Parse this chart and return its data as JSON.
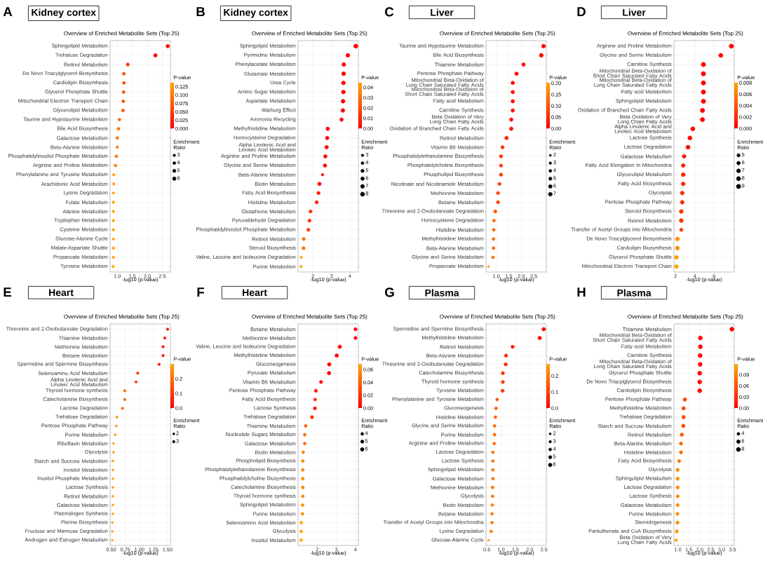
{
  "chart_data": [
    {
      "type": "bubble",
      "orientation": "horizontal",
      "marker": "circle",
      "grid": true,
      "annotations": [
        "A",
        "Kidney cortex"
      ],
      "title": "Overview of Enriched Metabolite Sets (Top 25)",
      "xlabel": "-log10 (p-value)",
      "legend_title": "Enrichment Ratio",
      "clabel": "P-value",
      "categories": [
        "Sphingolipid Metabolism",
        "Trehalose Degradation",
        "Retinol Metabolism",
        "De Novo Triacylglycerol Biosynthesis",
        "Cardiolipin Biosynthesis",
        "Glycerol Phosphate Shuttle",
        "Mitochondrial Electron Transport Chain",
        "Glycerolipid Metabolism",
        "Taurine and Hypotaurine Metabolism",
        "Bile Acid Biosynthesis",
        "Galactose Metabolism",
        "Beta-Alanine Metabolism",
        "Phosphatidylinositol Phosphate Metabolism",
        "Arginine and Proline Metabolism",
        "Phenylalanine and Tyrosine Metabolism",
        "Arachidonic Acid Metabolism",
        "Lysine Degradation",
        "Folate Metabolism",
        "Alanine Metabolism",
        "Tryptophan Metabolism",
        "Cysteine Metabolism",
        "Glucose-Alanine Cycle",
        "Malate-Aspartate Shuttle",
        "Propanoate Metabolism",
        "Tyrosine Metabolism"
      ],
      "values": [
        2.68,
        2.27,
        1.35,
        1.22,
        1.22,
        1.21,
        1.2,
        1.19,
        1.07,
        1.04,
        1.0,
        1.0,
        0.97,
        0.94,
        0.88,
        0.88,
        0.87,
        0.87,
        0.87,
        0.87,
        0.87,
        0.87,
        0.87,
        0.87,
        0.86
      ],
      "sizes": [
        6,
        6,
        5,
        4,
        4,
        4,
        4,
        4,
        4,
        4,
        4,
        3,
        4,
        4,
        3,
        3,
        3,
        3,
        3,
        3,
        3,
        3,
        3,
        3,
        3
      ],
      "cvalues": [
        0.0021,
        0.0054,
        0.045,
        0.06,
        0.06,
        0.062,
        0.063,
        0.065,
        0.085,
        0.091,
        0.1,
        0.1,
        0.107,
        0.115,
        0.132,
        0.132,
        0.135,
        0.135,
        0.135,
        0.135,
        0.135,
        0.135,
        0.135,
        0.135,
        0.138
      ],
      "size_legend": [
        3,
        4,
        5,
        6
      ],
      "clim": [
        0,
        0.138
      ],
      "cticks": [
        {
          "value": 0,
          "label": "0.000"
        },
        0.025,
        {
          "value": 0.05,
          "label": "0.050"
        },
        0.075,
        {
          "value": 0.1,
          "label": "0.100"
        },
        0.125
      ],
      "xlim": [
        0.76,
        2.77
      ],
      "xticks": [
        {
          "value": 1,
          "label": "1.0"
        },
        1.5,
        {
          "value": 2,
          "label": "2.0"
        },
        2.5
      ]
    },
    {
      "type": "bubble",
      "orientation": "horizontal",
      "marker": "circle",
      "grid": true,
      "annotations": [
        "B",
        "Kidney cortex"
      ],
      "title": "Overview of Enriched Metabolite Sets (Top 25)",
      "xlabel": "-log10 (p-value)",
      "legend_title": "Enrichment Ratio",
      "clabel": "P-value",
      "categories": [
        "Sphingolipid Metabolism",
        "Pyrimidine Metabolism",
        "Phenylacetate Metabolism",
        "Glutamate Metabolism",
        "Urea Cycle",
        "Amino Sugar Metabolism",
        "Aspartate Metabolism",
        "Warburg Effect",
        "Ammonia Recycling",
        "Methylhistidine Metabolism",
        "Homocysteine Degradation",
        "Alpha Linolenic Acid and Linoleic Acid Metabolism",
        "Arginine and Proline Metabolism",
        "Glycine and Serine Metabolism",
        "Beta-Alanine Metabolism",
        "Biotin Metabolism",
        "Fatty Acid Biosynthesis",
        "Histidine Metabolism",
        "Glutathione Metabolism",
        "Pyruvaldehyde Degradation",
        "Phosphatidylinositol Phosphate Metabolism",
        "Retinol Metabolism",
        "Steroid Biosynthesis",
        "Valine, Leucine and Isoleucine Degradation",
        "Purine Metabolism"
      ],
      "values": [
        4.32,
        3.89,
        3.67,
        3.66,
        3.65,
        3.65,
        3.63,
        3.62,
        3.55,
        2.8,
        2.77,
        2.74,
        2.67,
        2.65,
        2.52,
        2.35,
        2.3,
        2.2,
        1.87,
        1.81,
        1.75,
        1.5,
        1.49,
        1.36,
        1.35
      ],
      "sizes": [
        8,
        7,
        7,
        7,
        7,
        7,
        7,
        7,
        6,
        6,
        6,
        6,
        6,
        6,
        3,
        6,
        5,
        5,
        5,
        5,
        5,
        5,
        5,
        3,
        3
      ],
      "cvalues": [
        5e-05,
        0.00013,
        0.00021,
        0.00022,
        0.00022,
        0.00022,
        0.00023,
        0.00024,
        0.00028,
        0.0016,
        0.0017,
        0.0018,
        0.0021,
        0.0022,
        0.003,
        0.0045,
        0.005,
        0.0063,
        0.013,
        0.015,
        0.018,
        0.032,
        0.032,
        0.044,
        0.045
      ],
      "size_legend": [
        3,
        4,
        5,
        6,
        7,
        8
      ],
      "clim": [
        0,
        0.045
      ],
      "cticks": [
        {
          "value": 0,
          "label": "0.00"
        },
        0.01,
        0.02,
        0.03,
        0.04
      ],
      "xlim": [
        1.19,
        4.46
      ],
      "xticks": [
        2,
        3,
        4
      ]
    },
    {
      "type": "bubble",
      "orientation": "horizontal",
      "marker": "circle",
      "grid": true,
      "annotations": [
        "C",
        "Liver"
      ],
      "title": "Overview of Enriched Metabolite Sets (Top 25)",
      "xlabel": "-log10 (p-value)",
      "legend_title": "Enrichment Ratio",
      "clabel": "P-value",
      "categories": [
        "Taurine and Hypotaurine Metabolism",
        "Bile Acid Biosynthesis",
        "Thiamine Metabolism",
        "Pentose Phosphate Pathway",
        "Mitochondrial Beta-Oxidation of Long Chain Saturated Fatty Acids",
        "Mitochondrial Beta-Oxidation of Short Chain Saturated Fatty Acids",
        "Fatty acid Metabolism",
        "Carnitine Synthesis",
        "Beta Oxidation of Very Long Chain Fatty Acids",
        "Oxidation of Branched Chain Fatty Acids",
        "Retinol Metabolism",
        "Vitamin B6 Metabolism",
        "Phosphatidylethanolamine Biosynthesis",
        "Phosphatidylcholine Biosynthesis",
        "Phospholipid Biosynthesis",
        "Nicotinate and Nicotinamide Metabolism",
        "Methionine Metabolism",
        "Betaine Metabolism",
        "Threonine and 2-Oxobutanoate Degradation",
        "Homocysteine Degradation",
        "Histidine Metabolism",
        "Methylhistidine Metabolism",
        "Beta-Alanine Metabolism",
        "Glycine and Serine Metabolism",
        "Propanoate Metabolism"
      ],
      "values": [
        2.89,
        2.8,
        2.09,
        1.81,
        1.66,
        1.66,
        1.66,
        1.66,
        1.6,
        1.6,
        1.41,
        1.25,
        1.19,
        1.19,
        1.19,
        1.13,
        1.07,
        1.07,
        0.96,
        0.91,
        0.9,
        0.89,
        0.89,
        0.87,
        0.69
      ],
      "sizes": [
        7,
        7,
        6,
        6,
        6,
        6,
        6,
        6,
        6,
        6,
        6,
        5,
        5,
        5,
        5,
        5,
        5,
        5,
        5,
        4,
        4,
        4,
        4,
        4,
        2
      ],
      "cvalues": [
        0.0013,
        0.0016,
        0.0081,
        0.015,
        0.022,
        0.022,
        0.022,
        0.022,
        0.025,
        0.025,
        0.039,
        0.056,
        0.065,
        0.065,
        0.065,
        0.074,
        0.085,
        0.085,
        0.11,
        0.123,
        0.126,
        0.129,
        0.129,
        0.135,
        0.204
      ],
      "size_legend": [
        2,
        3,
        4,
        5,
        6,
        7
      ],
      "clim": [
        0,
        0.204
      ],
      "cticks": [
        {
          "value": 0,
          "label": "0.00"
        },
        0.05,
        {
          "value": 0.1,
          "label": "0.10"
        },
        0.15,
        {
          "value": 0.2,
          "label": "0.20"
        }
      ],
      "xlim": [
        0.59,
        3.0
      ],
      "xticks": [
        {
          "value": 1,
          "label": "1.0"
        },
        1.5,
        {
          "value": 2,
          "label": "2.0"
        },
        2.5
      ]
    },
    {
      "type": "bubble",
      "orientation": "horizontal",
      "marker": "circle",
      "grid": true,
      "annotations": [
        "D",
        "Liver"
      ],
      "title": "Overview of Enriched Metabolite Sets (Top 25)",
      "xlabel": "-log10 (p-value)",
      "legend_title": "Enrichment Ratio",
      "clabel": "P-value",
      "categories": [
        "Arginine and Proline Metabolism",
        "Glycine and Serine Metabolism",
        "Carnitine Synthesis",
        "Mitochondrial Beta-Oxidation of Short Chain Saturated Fatty Acids",
        "Mitochondrial Beta-Oxidation of Long Chain Saturated Fatty Acids",
        "Fatty acid Metabolism",
        "Sphingolipid Metabolism",
        "Oxidation of Branched Chain Fatty Acids",
        "Beta Oxidation of Very Long Chain Fatty Acids",
        "Alpha Linolenic Acid and Linoleic Acid Metabolism",
        "Lactose Synthesis",
        "Lactose Degradation",
        "Galactose Metabolism",
        "Fatty Acid Elongation In Mitochondria",
        "Glycerolipid Metabolism",
        "Fatty Acid Biosynthesis",
        "Glycolysis",
        "Pentose Phosphate Pathway",
        "Steroid Biosynthesis",
        "Retinol Metabolism",
        "Transfer of Acetyl Groups into Mitochondria",
        "De Novo Triacylglycerol Biosynthesis",
        "Cardiolipin Biosynthesis",
        "Glycerol Phosphate Shuttle",
        "Mitochondrial Electron Transport Chain"
      ],
      "values": [
        7.8,
        6.7,
        4.9,
        4.9,
        4.9,
        4.9,
        4.9,
        4.8,
        4.8,
        3.8,
        3.5,
        3.3,
        2.9,
        2.8,
        2.8,
        2.8,
        2.7,
        2.7,
        2.6,
        2.6,
        2.6,
        2.2,
        2.2,
        2.1,
        2.1
      ],
      "sizes": [
        9,
        8,
        9,
        9,
        9,
        9,
        9,
        9,
        9,
        8,
        8,
        8,
        7,
        7,
        7,
        7,
        7,
        7,
        7,
        7,
        5,
        7,
        7,
        7,
        7
      ],
      "cvalues": [
        2e-08,
        2e-07,
        1.3e-05,
        1.3e-05,
        1.3e-05,
        1.3e-05,
        1.4e-05,
        1.5e-05,
        1.5e-05,
        0.00017,
        0.0003,
        0.00052,
        0.0013,
        0.0015,
        0.0016,
        0.0018,
        0.0019,
        0.0019,
        0.0023,
        0.0024,
        0.0026,
        0.0069,
        0.0069,
        0.0078,
        0.0081
      ],
      "size_legend": [
        5,
        6,
        7,
        8,
        9
      ],
      "clim": [
        0,
        0.0081
      ],
      "cticks": [
        {
          "value": 0,
          "label": "0.000"
        },
        0.002,
        0.004,
        0.006,
        0.008
      ],
      "xlim": [
        1.84,
        8.1
      ],
      "xticks": [
        2,
        4,
        6
      ]
    },
    {
      "type": "bubble",
      "orientation": "horizontal",
      "marker": "circle",
      "grid": true,
      "annotations": [
        "E",
        "Heart"
      ],
      "title": "Overview of Enriched Metabolite Sets (Top 25)",
      "xlabel": "-log10 (p-value)",
      "legend_title": "Enrichment Ratio",
      "clabel": "P-value",
      "categories": [
        "Threonine and 2-Oxobutanoate Degradation",
        "Thiamine Metabolism",
        "Methionine Metabolism",
        "Betaine Metabolism",
        "Spermidine and Spermine Biosynthesis",
        "Selenoamino Acid Metabolism",
        "Alpha Linolenic Acid and Linoleic Acid Metabolism",
        "Thyroid hormone synthesis",
        "Catecholamine Biosynthesis",
        "Lactose Degradation",
        "Trehalose Degradation",
        "Pentose Phosphate Pathway",
        "Purine Metabolism",
        "Riboflavin Metabolism",
        "Glycolysis",
        "Starch and Sucrose Metabolism",
        "Inositol Metabolism",
        "Inositol Phosphate Metabolism",
        "Lactose Synthesis",
        "Retinol Metabolism",
        "Galactose Metabolism",
        "Plasmalogen Synthesis",
        "Pterine Biosynthesis",
        "Fructose and Mannose Degradation",
        "Androgen and Estrogen Metabolism"
      ],
      "values": [
        1.5,
        1.45,
        1.42,
        1.42,
        1.35,
        0.97,
        0.94,
        0.74,
        0.74,
        0.7,
        0.6,
        0.59,
        0.57,
        0.54,
        0.54,
        0.53,
        0.53,
        0.53,
        0.53,
        0.53,
        0.53,
        0.53,
        0.52,
        0.52,
        0.52
      ],
      "sizes": [
        3,
        3,
        3,
        3,
        3,
        3,
        3,
        3,
        3,
        3,
        2,
        2,
        2,
        2,
        2,
        2,
        2,
        2,
        2,
        2,
        2,
        2,
        2,
        2,
        2
      ],
      "cvalues": [
        0.032,
        0.035,
        0.038,
        0.038,
        0.045,
        0.107,
        0.115,
        0.182,
        0.182,
        0.2,
        0.251,
        0.257,
        0.269,
        0.288,
        0.288,
        0.295,
        0.295,
        0.295,
        0.295,
        0.295,
        0.295,
        0.295,
        0.302,
        0.302,
        0.302
      ],
      "size_legend": [
        2,
        3
      ],
      "clim": [
        0,
        0.302
      ],
      "cticks": [
        {
          "value": 0,
          "label": "0.0"
        },
        0.1,
        0.2
      ],
      "xlim": [
        0.48,
        1.55
      ],
      "xticks": [
        {
          "value": 0.5,
          "label": "0.50"
        },
        0.75,
        {
          "value": 1,
          "label": "1.00"
        },
        1.25,
        {
          "value": 1.5,
          "label": "1.50"
        }
      ]
    },
    {
      "type": "bubble",
      "orientation": "horizontal",
      "marker": "circle",
      "grid": true,
      "annotations": [
        "F",
        "Heart"
      ],
      "title": "Overview of Enriched Metabolite Sets (Top 25)",
      "xlabel": "-log10 (p-value)",
      "legend_title": "Enrichment Ratio",
      "clabel": "P-value",
      "categories": [
        "Betaine Metabolism",
        "Methionine Metabolism",
        "Valine, Leucine and Isoleucine Degradation",
        "Methylhistidine Metabolism",
        "Gluconeogenesis",
        "Pyruvate Metabolism",
        "Vitamin B6 Metabolism",
        "Pentose Phosphate Pathway",
        "Fatty Acid Biosynthesis",
        "Lactose Synthesis",
        "Trehalose Degradation",
        "Thiamine Metabolism",
        "Nucleotide Sugars Metabolism",
        "Galactose Metabolism",
        "Biotin Metabolism",
        "Phospholipid Biosynthesis",
        "Phosphatidylethanolamine Biosynthesis",
        "Phosphatidylcholine Biosynthesis",
        "Catecholamine Biosynthesis",
        "Thyroid hormone synthesis",
        "Sphingolipid Metabolism",
        "Purine Metabolism",
        "Selenoamino Acid Metabolism",
        "Glycolysis",
        "Inositol Metabolism"
      ],
      "values": [
        4.0,
        4.0,
        3.18,
        3.02,
        2.63,
        2.62,
        2.2,
        1.93,
        1.89,
        1.88,
        1.73,
        1.4,
        1.35,
        1.35,
        1.27,
        1.25,
        1.25,
        1.25,
        1.25,
        1.25,
        1.24,
        1.23,
        1.17,
        1.17,
        1.16
      ],
      "sizes": [
        5,
        5,
        6,
        6,
        6,
        6,
        5,
        5,
        4,
        5,
        5,
        4,
        4,
        4,
        4,
        4,
        4,
        4,
        4,
        4,
        4,
        4,
        4,
        4,
        4
      ],
      "cvalues": [
        0.0001,
        0.0001,
        0.00066,
        0.00095,
        0.0023,
        0.0024,
        0.0063,
        0.012,
        0.013,
        0.013,
        0.019,
        0.04,
        0.045,
        0.045,
        0.054,
        0.056,
        0.056,
        0.056,
        0.056,
        0.056,
        0.058,
        0.059,
        0.068,
        0.068,
        0.069
      ],
      "size_legend": [
        4,
        5,
        6
      ],
      "clim": [
        0,
        0.069
      ],
      "cticks": [
        {
          "value": 0,
          "label": "0.00"
        },
        0.02,
        0.04,
        0.06
      ],
      "xlim": [
        1.0,
        4.15
      ],
      "xticks": [
        2,
        3,
        4
      ]
    },
    {
      "type": "bubble",
      "orientation": "horizontal",
      "marker": "circle",
      "grid": true,
      "annotations": [
        "G",
        "Plasma"
      ],
      "title": "Overview of Enriched Metabolite Sets (Top 25)",
      "xlabel": "-log10 (p-value)",
      "legend_title": "Enrichment Ratio",
      "clabel": "P-value",
      "categories": [
        "Spermidine and Spermine Biosynthesis",
        "Methylhistidine Metabolism",
        "Retinol Metabolism",
        "Beta-Alanine Metabolism",
        "Threonine and 2-Oxobutanoate Degradation",
        "Catecholamine Biosynthesis",
        "Thyroid hormone synthesis",
        "Tyrosine Metabolism",
        "Phenylalanine and Tyrosine Metabolism",
        "Gluconeogenesis",
        "Histidine Metabolism",
        "Glycine and Serine Metabolism",
        "Purine Metabolism",
        "Arginine and Proline Metabolism",
        "Lactose Degradation",
        "Lactose Synthesis",
        "Sphingolipid Metabolism",
        "Galactose Metabolism",
        "Methionine Metabolism",
        "Glycolysis",
        "Biotin Metabolism",
        "Betaine Metabolism",
        "Transfer of Acetyl Groups into Mitochondria",
        "Lysine Degradation",
        "Glucose-Alanine Cycle"
      ],
      "values": [
        2.49,
        2.35,
        1.4,
        1.17,
        1.16,
        1.06,
        1.06,
        1.05,
        0.86,
        0.82,
        0.8,
        0.77,
        0.77,
        0.76,
        0.71,
        0.71,
        0.71,
        0.71,
        0.7,
        0.7,
        0.69,
        0.68,
        0.68,
        0.65,
        0.56
      ],
      "sizes": [
        6,
        6,
        5,
        5,
        5,
        5,
        5,
        5,
        4,
        4,
        4,
        4,
        4,
        4,
        4,
        4,
        4,
        4,
        4,
        4,
        4,
        4,
        4,
        4,
        2
      ],
      "cvalues": [
        0.0032,
        0.0045,
        0.04,
        0.068,
        0.069,
        0.087,
        0.087,
        0.089,
        0.138,
        0.151,
        0.158,
        0.17,
        0.17,
        0.174,
        0.195,
        0.195,
        0.195,
        0.195,
        0.2,
        0.2,
        0.204,
        0.209,
        0.209,
        0.224,
        0.275
      ],
      "size_legend": [
        2,
        3,
        4,
        5,
        6
      ],
      "clim": [
        0,
        0.275
      ],
      "cticks": [
        {
          "value": 0,
          "label": "0.0"
        },
        0.1,
        0.2
      ],
      "xlim": [
        0.47,
        2.58
      ],
      "xticks": [
        0.5,
        {
          "value": 1,
          "label": "1.0"
        },
        1.5,
        {
          "value": 2,
          "label": "2.0"
        },
        2.5
      ]
    },
    {
      "type": "bubble",
      "orientation": "horizontal",
      "marker": "circle",
      "grid": true,
      "annotations": [
        "H",
        "Plasma"
      ],
      "title": "Overview of Enriched Metabolite Sets (Top 25)",
      "xlabel": "-log10 (p-value)",
      "legend_title": "Enrichment Ratio",
      "clabel": "P-value",
      "categories": [
        "Thiamine Metabolism",
        "Mitochondrial Beta-Oxidation of Short Chain Saturated Fatty Acids",
        "Fatty acid Metabolism",
        "Carnitine Synthesis",
        "Mitochondrial Beta-Oxidation of Long Chain Saturated Fatty Acids",
        "Glycerol Phosphate Shuttle",
        "De Novo Triacylglycerol Biosynthesis",
        "Cardiolipin Biosynthesis",
        "Pentose Phosphate Pathway",
        "Methylhistidine Metabolism",
        "Trehalose Degradation",
        "Starch and Sucrose Metabolism",
        "Retinol Metabolism",
        "Beta-Alanine Metabolism",
        "Histidine Metabolism",
        "Fatty Acid Biosynthesis",
        "Glycolysis",
        "Sphingolipid Metabolism",
        "Lactose Degradation",
        "Lactose Synthesis",
        "Galactose Metabolism",
        "Purine Metabolism",
        "Steroidogenesis",
        "Pantothenate and CoA Biosynthesis",
        "Beta Oxidation of Very Long Chain Fatty Acids"
      ],
      "values": [
        3.47,
        2.03,
        2.03,
        2.02,
        2.02,
        2.0,
        2.0,
        2.0,
        1.32,
        1.26,
        1.26,
        1.25,
        1.18,
        1.14,
        1.14,
        1.06,
        0.99,
        0.99,
        0.99,
        0.99,
        0.99,
        0.98,
        0.98,
        0.95,
        0.92
      ],
      "sizes": [
        8,
        8,
        8,
        8,
        8,
        8,
        8,
        8,
        6,
        6,
        6,
        6,
        6,
        5,
        5,
        5,
        5,
        5,
        5,
        5,
        5,
        5,
        5,
        5,
        4
      ],
      "cvalues": [
        0.00034,
        0.0093,
        0.0093,
        0.0095,
        0.0095,
        0.01,
        0.01,
        0.01,
        0.048,
        0.055,
        0.055,
        0.056,
        0.066,
        0.072,
        0.072,
        0.087,
        0.102,
        0.102,
        0.102,
        0.102,
        0.102,
        0.105,
        0.105,
        0.112,
        0.12
      ],
      "size_legend": [
        4,
        6,
        8
      ],
      "clim": [
        0,
        0.12
      ],
      "cticks": [
        {
          "value": 0,
          "label": "0.00"
        },
        0.03,
        0.06,
        0.09
      ],
      "xlim": [
        0.82,
        3.58
      ],
      "xticks": [
        {
          "value": 1,
          "label": "1.0"
        },
        1.5,
        {
          "value": 2,
          "label": "2.0"
        },
        2.5,
        {
          "value": 3,
          "label": "3.0"
        },
        3.5
      ]
    }
  ]
}
